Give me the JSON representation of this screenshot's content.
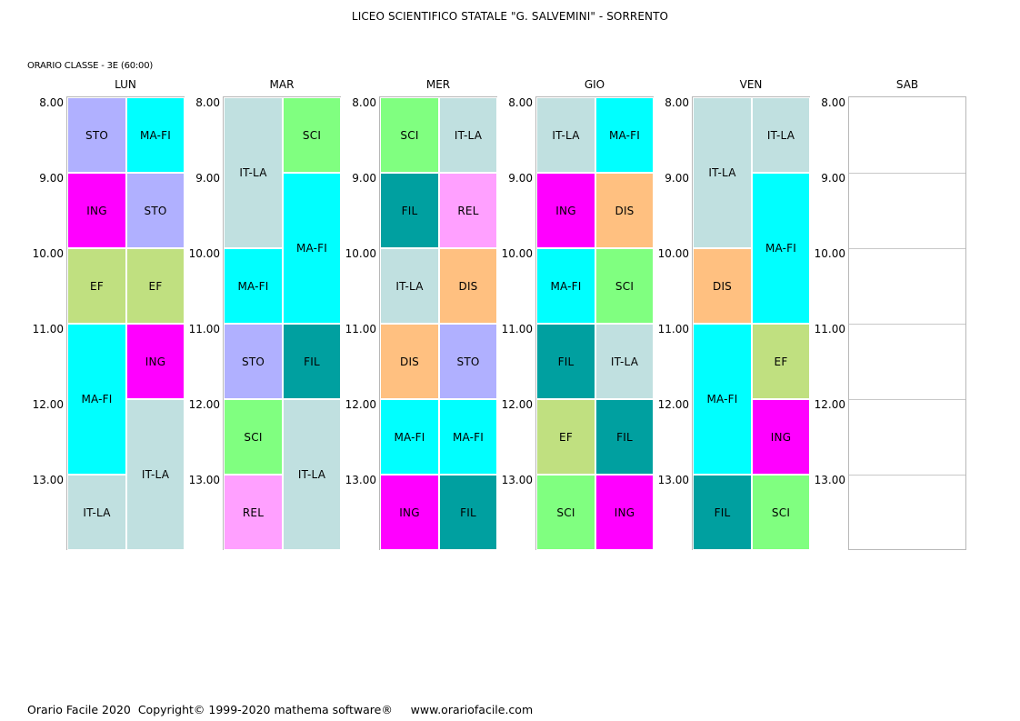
{
  "header": {
    "title": "LICEO SCIENTIFICO STATALE \"G. SALVEMINI\" - SORRENTO",
    "subtitle": "ORARIO CLASSE  -  3E  (60:00)"
  },
  "hours": [
    "8.00",
    "9.00",
    "10.00",
    "11.00",
    "12.00",
    "13.00"
  ],
  "colors": {
    "STO": "#b0b0ff",
    "MA-FI": "#00ffff",
    "ING": "#ff00ff",
    "EF": "#c0e080",
    "IT-LA": "#c0e0e0",
    "SCI": "#80ff80",
    "REL": "#ffa0ff",
    "FIL": "#00a0a0",
    "DIS": "#ffc080"
  },
  "days": [
    {
      "label": "LUN",
      "lessons": [
        {
          "subject": "STO",
          "col": 0,
          "start": 0,
          "len": 1
        },
        {
          "subject": "MA-FI",
          "col": 1,
          "start": 0,
          "len": 1
        },
        {
          "subject": "ING",
          "col": 0,
          "start": 1,
          "len": 1
        },
        {
          "subject": "STO",
          "col": 1,
          "start": 1,
          "len": 1
        },
        {
          "subject": "EF",
          "col": 0,
          "start": 2,
          "len": 1
        },
        {
          "subject": "EF",
          "col": 1,
          "start": 2,
          "len": 1
        },
        {
          "subject": "MA-FI",
          "col": 0,
          "start": 3,
          "len": 2
        },
        {
          "subject": "ING",
          "col": 1,
          "start": 3,
          "len": 1
        },
        {
          "subject": "IT-LA",
          "col": 1,
          "start": 4,
          "len": 2
        },
        {
          "subject": "IT-LA",
          "col": 0,
          "start": 5,
          "len": 1
        }
      ]
    },
    {
      "label": "MAR",
      "lessons": [
        {
          "subject": "IT-LA",
          "col": 0,
          "start": 0,
          "len": 2
        },
        {
          "subject": "SCI",
          "col": 1,
          "start": 0,
          "len": 1
        },
        {
          "subject": "MA-FI",
          "col": 1,
          "start": 1,
          "len": 2
        },
        {
          "subject": "MA-FI",
          "col": 0,
          "start": 2,
          "len": 1
        },
        {
          "subject": "STO",
          "col": 0,
          "start": 3,
          "len": 1
        },
        {
          "subject": "FIL",
          "col": 1,
          "start": 3,
          "len": 1
        },
        {
          "subject": "SCI",
          "col": 0,
          "start": 4,
          "len": 1
        },
        {
          "subject": "IT-LA",
          "col": 1,
          "start": 4,
          "len": 2
        },
        {
          "subject": "REL",
          "col": 0,
          "start": 5,
          "len": 1
        }
      ]
    },
    {
      "label": "MER",
      "lessons": [
        {
          "subject": "SCI",
          "col": 0,
          "start": 0,
          "len": 1
        },
        {
          "subject": "IT-LA",
          "col": 1,
          "start": 0,
          "len": 1
        },
        {
          "subject": "FIL",
          "col": 0,
          "start": 1,
          "len": 1
        },
        {
          "subject": "REL",
          "col": 1,
          "start": 1,
          "len": 1
        },
        {
          "subject": "IT-LA",
          "col": 0,
          "start": 2,
          "len": 1
        },
        {
          "subject": "DIS",
          "col": 1,
          "start": 2,
          "len": 1
        },
        {
          "subject": "DIS",
          "col": 0,
          "start": 3,
          "len": 1
        },
        {
          "subject": "STO",
          "col": 1,
          "start": 3,
          "len": 1
        },
        {
          "subject": "MA-FI",
          "col": 0,
          "start": 4,
          "len": 1
        },
        {
          "subject": "MA-FI",
          "col": 1,
          "start": 4,
          "len": 1
        },
        {
          "subject": "ING",
          "col": 0,
          "start": 5,
          "len": 1
        },
        {
          "subject": "FIL",
          "col": 1,
          "start": 5,
          "len": 1
        }
      ]
    },
    {
      "label": "GIO",
      "lessons": [
        {
          "subject": "IT-LA",
          "col": 0,
          "start": 0,
          "len": 1
        },
        {
          "subject": "MA-FI",
          "col": 1,
          "start": 0,
          "len": 1
        },
        {
          "subject": "ING",
          "col": 0,
          "start": 1,
          "len": 1
        },
        {
          "subject": "DIS",
          "col": 1,
          "start": 1,
          "len": 1
        },
        {
          "subject": "MA-FI",
          "col": 0,
          "start": 2,
          "len": 1
        },
        {
          "subject": "SCI",
          "col": 1,
          "start": 2,
          "len": 1
        },
        {
          "subject": "FIL",
          "col": 0,
          "start": 3,
          "len": 1
        },
        {
          "subject": "IT-LA",
          "col": 1,
          "start": 3,
          "len": 1
        },
        {
          "subject": "EF",
          "col": 0,
          "start": 4,
          "len": 1
        },
        {
          "subject": "FIL",
          "col": 1,
          "start": 4,
          "len": 1
        },
        {
          "subject": "SCI",
          "col": 0,
          "start": 5,
          "len": 1
        },
        {
          "subject": "ING",
          "col": 1,
          "start": 5,
          "len": 1
        }
      ]
    },
    {
      "label": "VEN",
      "lessons": [
        {
          "subject": "IT-LA",
          "col": 0,
          "start": 0,
          "len": 2
        },
        {
          "subject": "IT-LA",
          "col": 1,
          "start": 0,
          "len": 1
        },
        {
          "subject": "MA-FI",
          "col": 1,
          "start": 1,
          "len": 2
        },
        {
          "subject": "DIS",
          "col": 0,
          "start": 2,
          "len": 1
        },
        {
          "subject": "MA-FI",
          "col": 0,
          "start": 3,
          "len": 2
        },
        {
          "subject": "EF",
          "col": 1,
          "start": 3,
          "len": 1
        },
        {
          "subject": "ING",
          "col": 1,
          "start": 4,
          "len": 1
        },
        {
          "subject": "FIL",
          "col": 0,
          "start": 5,
          "len": 1
        },
        {
          "subject": "SCI",
          "col": 1,
          "start": 5,
          "len": 1
        }
      ]
    },
    {
      "label": "SAB",
      "lessons": []
    }
  ],
  "footer": {
    "text": "Orario Facile 2020  Copyright© 1999-2020 mathema software®     www.orariofacile.com"
  }
}
